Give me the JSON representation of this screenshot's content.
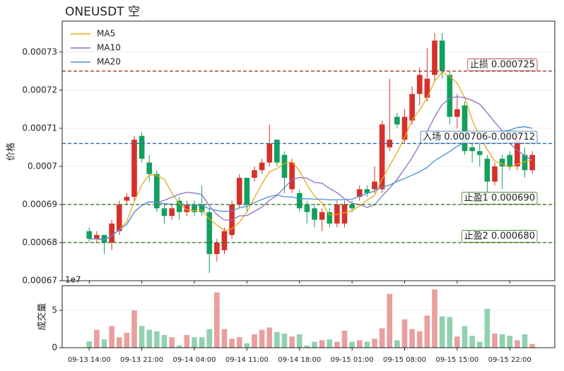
{
  "chart_data": {
    "type": "candlestick",
    "title": "ONEUSDT  空",
    "ylabel": "价格",
    "categories": [
      "09-13 14:00",
      null,
      null,
      null,
      null,
      null,
      null,
      "09-13 21:00",
      null,
      null,
      null,
      null,
      null,
      null,
      "09-14 04:00",
      null,
      null,
      null,
      null,
      null,
      null,
      "09-14 11:00",
      null,
      null,
      null,
      null,
      null,
      null,
      "09-14 18:00",
      null,
      null,
      null,
      null,
      null,
      null,
      "09-15 01:00",
      null,
      null,
      null,
      null,
      null,
      null,
      "09-15 08:00",
      null,
      null,
      null,
      null,
      null,
      null,
      "09-15 15:00",
      null,
      null,
      null,
      null,
      null,
      null,
      "09-15 22:00",
      null,
      null,
      null
    ],
    "open": [
      0.000683,
      0.000681,
      0.000682,
      0.00068,
      0.000683,
      0.000691,
      0.000692,
      0.000708,
      0.000701,
      0.000698,
      0.000689,
      0.000687,
      0.000691,
      0.000688,
      0.00069,
      0.00069,
      0.000688,
      0.000677,
      0.000678,
      0.000682,
      0.00069,
      0.000697,
      0.000697,
      0.000699,
      0.000701,
      0.000707,
      0.000703,
      0.000694,
      0.000693,
      0.00069,
      0.000689,
      0.000686,
      0.000688,
      0.000685,
      0.000685,
      0.00069,
      0.000692,
      0.000694,
      0.000694,
      0.000694,
      0.000705,
      0.000713,
      0.000707,
      0.000712,
      0.000719,
      0.000718,
      0.000724,
      0.000733,
      0.000724,
      0.000713,
      0.000716,
      0.000705,
      0.000704,
      0.000702,
      0.000696,
      0.000702,
      0.000703,
      0.0007,
      0.000703,
      0.000699
    ],
    "high": [
      0.000684,
      0.000683,
      0.000682,
      0.000686,
      0.000691,
      0.000693,
      0.000708,
      0.000709,
      0.000703,
      0.000699,
      0.00069,
      0.00069,
      0.000692,
      0.000691,
      0.000691,
      0.000695,
      0.000689,
      0.000681,
      0.000684,
      0.000691,
      0.000698,
      0.000697,
      0.0007,
      0.000702,
      0.000711,
      0.000707,
      0.000704,
      0.000702,
      0.000694,
      0.000691,
      0.00069,
      0.000689,
      0.000689,
      0.000691,
      0.000691,
      0.000691,
      0.000695,
      0.000695,
      0.0007,
      0.000712,
      0.000723,
      0.000714,
      0.000715,
      0.000721,
      0.000726,
      0.000731,
      0.000735,
      0.000735,
      0.000725,
      0.000719,
      0.000717,
      0.000706,
      0.000706,
      0.000703,
      0.000701,
      0.000703,
      0.000704,
      0.000708,
      0.000705,
      0.000704
    ],
    "low": [
      0.00068,
      0.00068,
      0.000677,
      0.000678,
      0.000682,
      0.00069,
      0.000691,
      0.000701,
      0.000696,
      0.000688,
      0.000685,
      0.000686,
      0.000686,
      0.000687,
      0.000687,
      0.000687,
      0.000672,
      0.000675,
      0.000677,
      0.000681,
      0.000689,
      0.000688,
      0.000696,
      0.000698,
      0.0007,
      0.0007,
      0.000693,
      0.000693,
      0.000688,
      0.000685,
      0.000684,
      0.000683,
      0.000684,
      0.000684,
      0.000684,
      0.000688,
      0.000691,
      0.000692,
      0.000693,
      0.000693,
      0.000704,
      0.00071,
      0.000706,
      0.000711,
      0.000716,
      0.000717,
      0.000722,
      0.000723,
      0.000711,
      0.00071,
      0.000703,
      0.000701,
      0.0007,
      0.000692,
      0.000695,
      0.000694,
      0.000699,
      0.000699,
      0.000697,
      0.000698
    ],
    "close": [
      0.000681,
      0.000682,
      0.00068,
      0.000685,
      0.00069,
      0.000692,
      0.000707,
      0.000702,
      0.000698,
      0.000689,
      0.000687,
      0.000689,
      0.000688,
      0.00069,
      0.000688,
      0.000688,
      0.000677,
      0.00068,
      0.000683,
      0.00069,
      0.000697,
      0.00069,
      0.000699,
      0.000701,
      0.000706,
      0.000701,
      0.000697,
      0.000701,
      0.000689,
      0.000688,
      0.000686,
      0.000688,
      0.000685,
      0.00069,
      0.00069,
      0.000689,
      0.000694,
      0.000693,
      0.000696,
      0.000711,
      0.000707,
      0.000711,
      0.000713,
      0.000719,
      0.000724,
      0.000723,
      0.000733,
      0.000725,
      0.000713,
      0.000715,
      0.000704,
      0.000704,
      0.000703,
      0.000696,
      0.0007,
      0.0007,
      0.0007,
      0.000707,
      0.000699,
      0.000703
    ],
    "up_color": "#d6302a",
    "down_color": "#12a05c",
    "series": [
      {
        "name": "MA5",
        "color": "#e6a817",
        "values": [
          0.000681,
          0.000681,
          0.0006807,
          0.0006818,
          0.0006834,
          0.0006856,
          0.0006908,
          0.0006952,
          0.0006978,
          0.0006976,
          0.0006966,
          0.000693,
          0.0006902,
          0.0006886,
          0.0006884,
          0.0006886,
          0.0006862,
          0.0006846,
          0.0006832,
          0.0006836,
          0.0006854,
          0.000688,
          0.0006918,
          0.0006954,
          0.0006986,
          0.0006994,
          0.0007008,
          0.0007012,
          0.0006988,
          0.0006952,
          0.0006922,
          0.0006904,
          0.0006872,
          0.0006874,
          0.0006878,
          0.0006884,
          0.0006896,
          0.0006912,
          0.0006924,
          0.0006966,
          0.0007002,
          0.0007036,
          0.0007076,
          0.0007122,
          0.0007148,
          0.000718,
          0.0007224,
          0.0007248,
          0.0007236,
          0.0007218,
          0.000718,
          0.0007122,
          0.0007078,
          0.0007044,
          0.0007014,
          0.0007006,
          0.0006998,
          0.0007006,
          0.0007012,
          0.0007018
        ]
      },
      {
        "name": "MA10",
        "color": "#8b6fc4",
        "values": [
          0.000681,
          0.000681,
          0.0006807,
          0.0006818,
          0.0006834,
          0.0006848,
          0.000688,
          0.0006898,
          0.0006907,
          0.0006905,
          0.0006911,
          0.0006919,
          0.0006927,
          0.0006932,
          0.000693,
          0.0006926,
          0.0006896,
          0.0006874,
          0.0006859,
          0.000686,
          0.000687,
          0.0006871,
          0.0006882,
          0.0006893,
          0.0006911,
          0.0006924,
          0.0006944,
          0.0006965,
          0.0006971,
          0.0006969,
          0.0006958,
          0.0006956,
          0.0006942,
          0.0006931,
          0.0006915,
          0.0006903,
          0.00069,
          0.0006892,
          0.0006899,
          0.0006922,
          0.0006943,
          0.0006966,
          0.0006994,
          0.0007023,
          0.0007057,
          0.0007091,
          0.000713,
          0.0007162,
          0.0007179,
          0.0007183,
          0.000718,
          0.0007173,
          0.0007163,
          0.000714,
          0.0007116,
          0.0007093,
          0.000706,
          0.0007042,
          0.0007028,
          0.0007016
        ]
      },
      {
        "name": "MA20",
        "color": "#4a8fd4",
        "values": [
          0.000681,
          0.000681,
          0.0006807,
          0.0006818,
          0.0006834,
          0.0006848,
          0.000688,
          0.0006898,
          0.0006907,
          0.0006905,
          0.0006902,
          0.0006901,
          0.0006899,
          0.0006899,
          0.0006898,
          0.0006897,
          0.0006889,
          0.0006884,
          0.0006882,
          0.0006883,
          0.0006891,
          0.0006895,
          0.0006905,
          0.0006913,
          0.0006921,
          0.0006925,
          0.000692,
          0.000692,
          0.0006915,
          0.0006915,
          0.0006914,
          0.0006914,
          0.0006912,
          0.0006912,
          0.0006913,
          0.0006914,
          0.0006922,
          0.0006929,
          0.0006935,
          0.0006946,
          0.0006951,
          0.0006961,
          0.0006968,
          0.0006977,
          0.0006986,
          0.0006997,
          0.0007015,
          0.0007027,
          0.0007039,
          0.0007053,
          0.0007062,
          0.000707,
          0.0007079,
          0.0007082,
          0.0007087,
          0.0007092,
          0.0007095,
          0.0007102,
          0.0007104,
          0.00071
        ]
      }
    ],
    "levels": [
      {
        "label": "止损 0.000725",
        "value": 0.000725,
        "color": "#a83232"
      },
      {
        "label": "入场 0.000706-0.000712",
        "value": 0.000706,
        "color": "#2a6aa8"
      },
      {
        "label": "止盈1 0.000690",
        "value": 0.00069,
        "color": "#3c7a26"
      },
      {
        "label": "止盈2 0.000680",
        "value": 0.00068,
        "color": "#3c7a26"
      }
    ],
    "ylim": [
      0.00067,
      0.0007381
    ],
    "yticks": [
      0.00067,
      0.00068,
      0.00069,
      0.0007,
      0.00071,
      0.00072,
      0.00073
    ],
    "grid": true,
    "legend": "upper left",
    "volume": {
      "ylabel": "成交量",
      "offset_label": "1e7",
      "values": [
        0.85,
        2.4,
        1.1,
        2.9,
        1.4,
        2.0,
        5.0,
        2.9,
        2.4,
        2.2,
        1.7,
        1.4,
        0.3,
        1.7,
        1.4,
        1.4,
        2.5,
        7.4,
        2.5,
        1.2,
        1.4,
        0.6,
        1.8,
        2.4,
        2.7,
        2.1,
        1.9,
        1.5,
        1.8,
        0.3,
        0.8,
        1.0,
        1.1,
        0.8,
        2.3,
        0.8,
        1.0,
        0.8,
        1.2,
        2.6,
        7.2,
        1.0,
        3.8,
        2.5,
        2.2,
        4.3,
        7.8,
        4.2,
        4.1,
        1.5,
        2.9,
        1.6,
        0.8,
        5.2,
        1.9,
        1.8,
        1.6,
        1.0,
        1.8,
        0.5
      ],
      "up_color": "#e8a09e",
      "down_color": "#92d0b2",
      "ylim": [
        0,
        8.3
      ],
      "yticks": [
        0,
        5
      ]
    }
  }
}
